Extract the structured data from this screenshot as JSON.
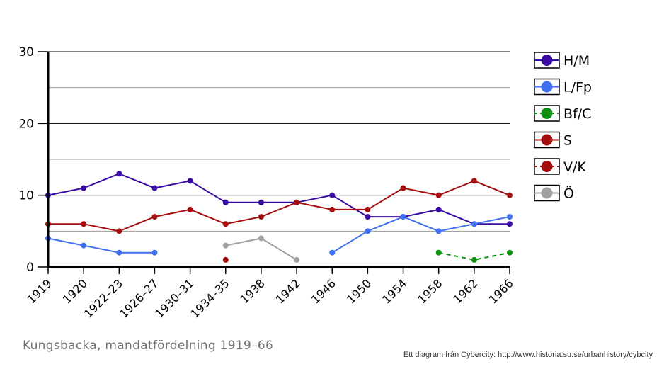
{
  "caption": "Kungsbacka, mandatfördelning 1919–66",
  "credit": "Ett diagram från Cybercity: http://www.historia.su.se/urbanhistory/cybcity",
  "chart_data": {
    "type": "line",
    "title": "",
    "xlabel": "",
    "ylabel": "",
    "ylim": [
      0,
      30
    ],
    "yticks": [
      0,
      10,
      20,
      30
    ],
    "grid": true,
    "legend_position": "right",
    "categories": [
      "1919",
      "1920",
      "1922–23",
      "1926–27",
      "1930–31",
      "1934–35",
      "1938",
      "1942",
      "1946",
      "1950",
      "1954",
      "1958",
      "1962",
      "1966"
    ],
    "series": [
      {
        "name": "H/M",
        "color": "#3a0ca3",
        "dashed": false,
        "values": [
          10,
          11,
          13,
          11,
          12,
          9,
          9,
          9,
          10,
          7,
          7,
          8,
          6,
          6
        ]
      },
      {
        "name": "L/Fp",
        "color": "#4070f0",
        "dashed": false,
        "values": [
          4,
          3,
          2,
          2,
          null,
          null,
          null,
          null,
          2,
          5,
          7,
          5,
          6,
          7
        ]
      },
      {
        "name": "Bf/C",
        "color": "#109010",
        "dashed": true,
        "values": [
          null,
          null,
          null,
          null,
          null,
          null,
          null,
          null,
          null,
          null,
          null,
          2,
          1,
          2
        ]
      },
      {
        "name": "S",
        "color": "#a50e0e",
        "dashed": false,
        "values": [
          6,
          6,
          5,
          7,
          8,
          6,
          7,
          9,
          8,
          8,
          11,
          10,
          12,
          10
        ]
      },
      {
        "name": "V/K",
        "color": "#a50e0e",
        "dashed": true,
        "values": [
          null,
          null,
          null,
          null,
          null,
          1,
          null,
          null,
          null,
          null,
          null,
          null,
          null,
          null
        ]
      },
      {
        "name": "Ö",
        "color": "#a0a0a0",
        "dashed": false,
        "values": [
          null,
          null,
          null,
          null,
          null,
          3,
          4,
          1,
          null,
          null,
          null,
          null,
          null,
          null
        ]
      }
    ]
  }
}
